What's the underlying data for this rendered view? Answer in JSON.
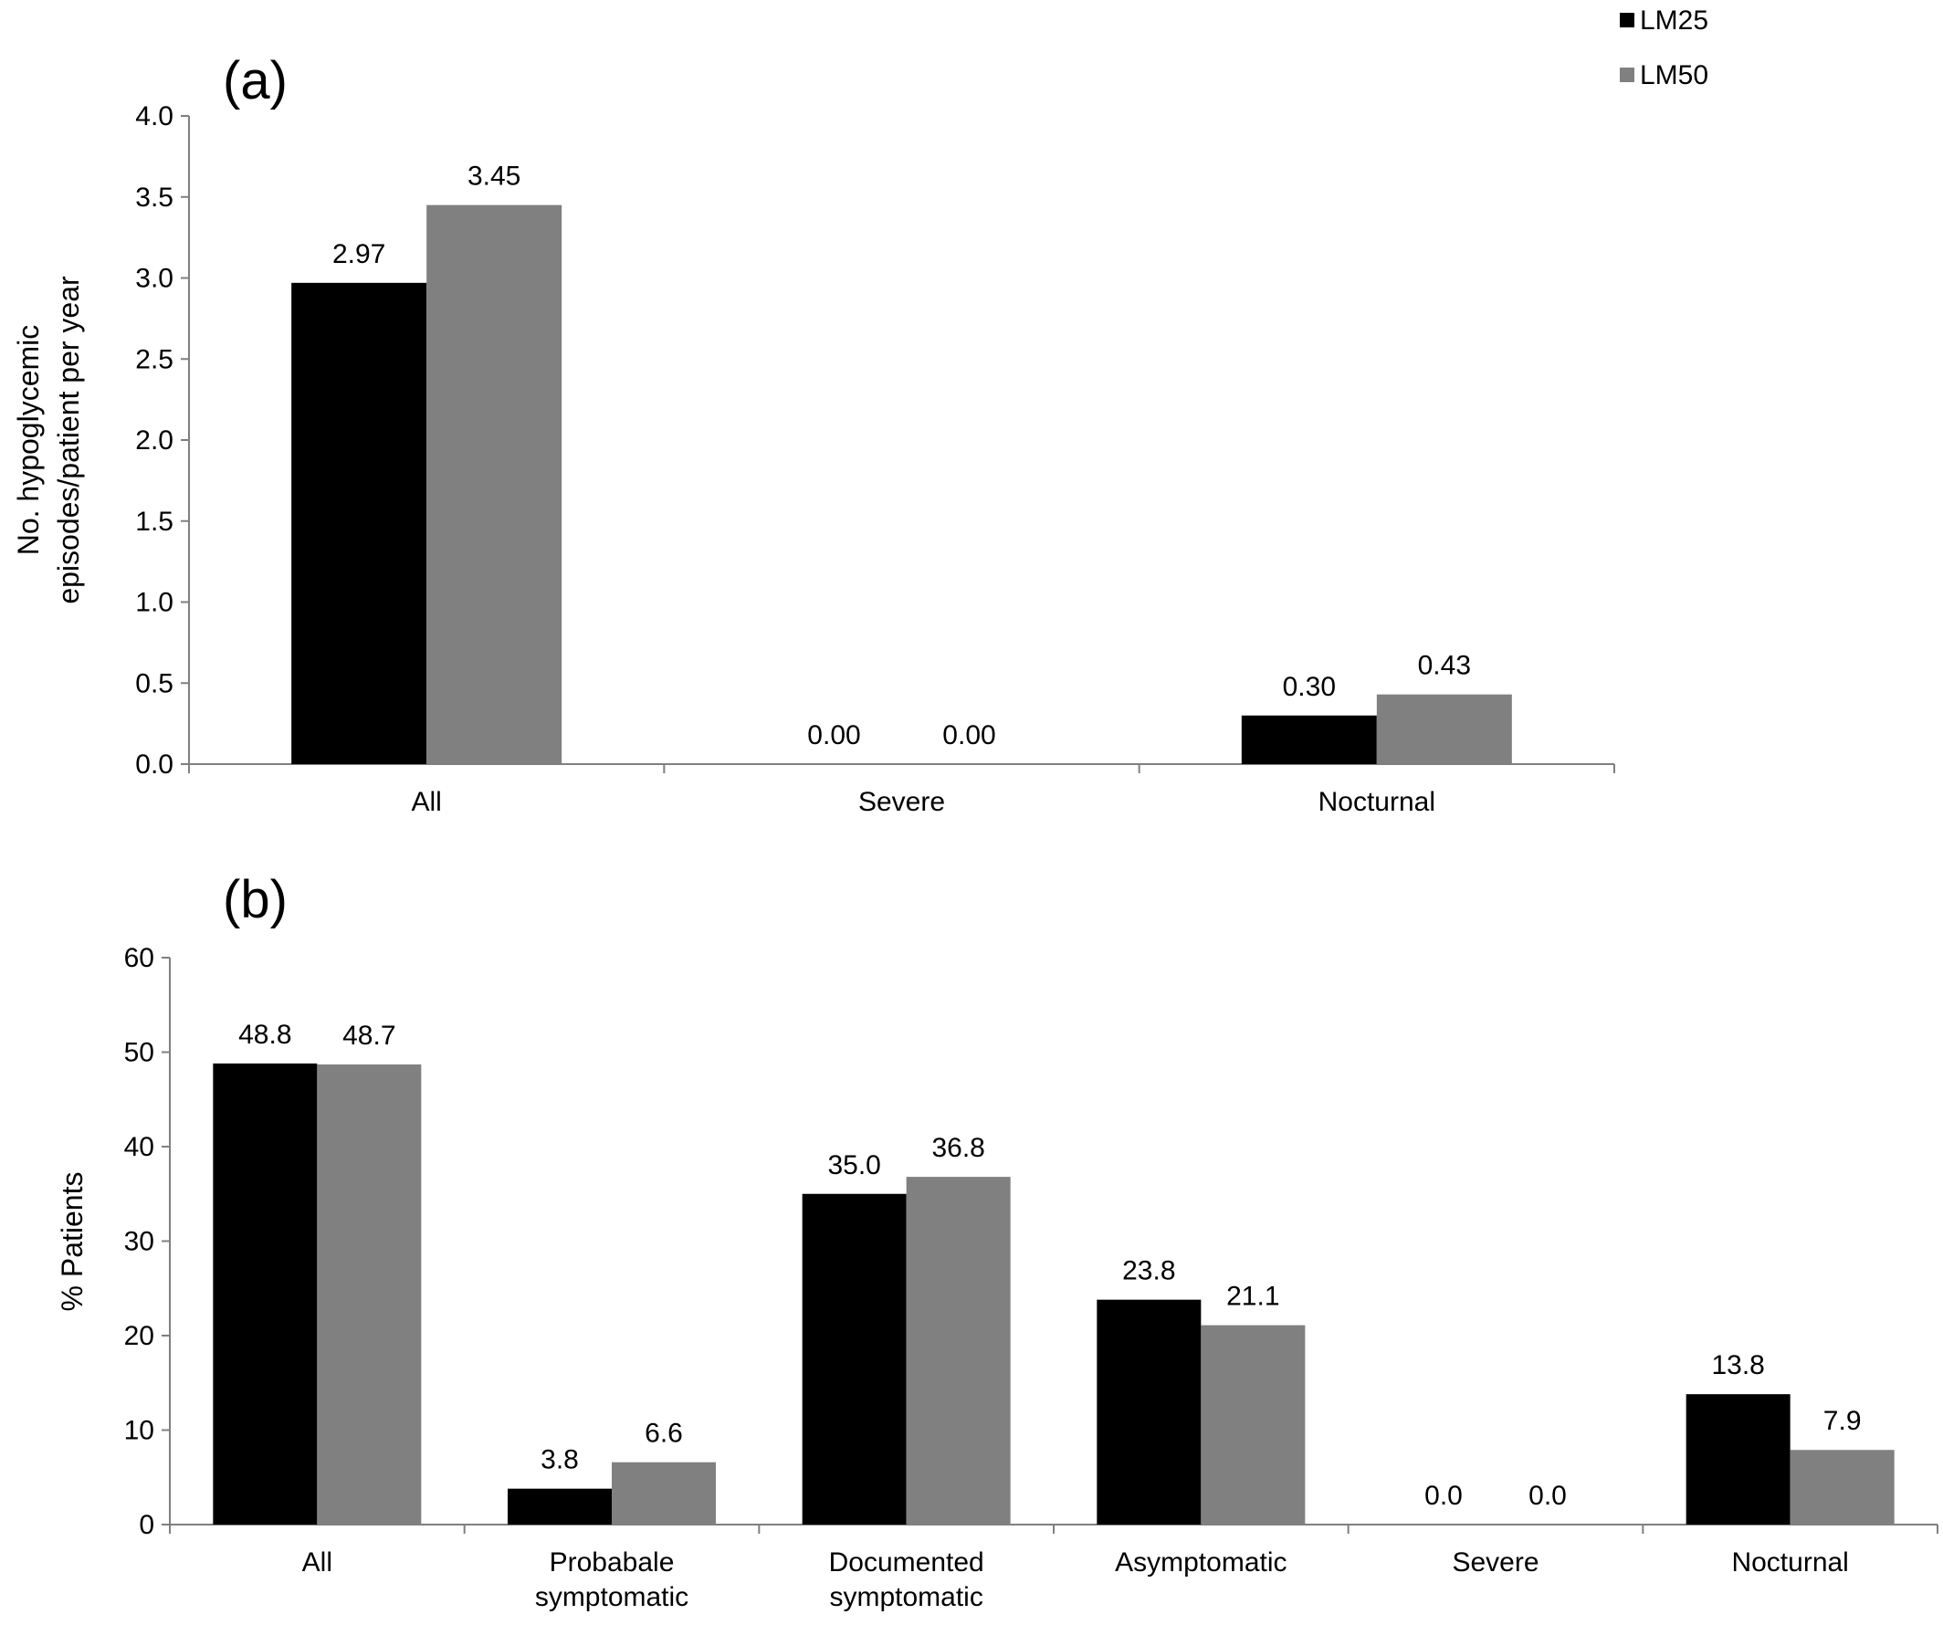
{
  "colors": {
    "LM25": "#000000",
    "LM50": "#808080",
    "axis": "#7f7f7f"
  },
  "legend": {
    "items": [
      {
        "name": "LM25",
        "color": "#000000"
      },
      {
        "name": "LM50",
        "color": "#808080"
      }
    ]
  },
  "chart_data": [
    {
      "type": "bar",
      "panel_tag": "(a)",
      "ylabel_line1": "No. hypoglycemic",
      "ylabel_line2": "episodes/patient per year",
      "xlabel": "",
      "ylim": [
        0,
        4.0
      ],
      "yticks": [
        "0.0",
        "0.5",
        "1.0",
        "1.5",
        "2.0",
        "2.5",
        "3.0",
        "3.5",
        "4.0"
      ],
      "categories": [
        [
          "All"
        ],
        [
          "Severe"
        ],
        [
          "Nocturnal"
        ]
      ],
      "series": [
        {
          "name": "LM25",
          "values": [
            2.97,
            0.0,
            0.3
          ],
          "labels": [
            "2.97",
            "0.00",
            "0.30"
          ]
        },
        {
          "name": "LM50",
          "values": [
            3.45,
            0.0,
            0.43
          ],
          "labels": [
            "3.45",
            "0.00",
            "0.43"
          ]
        }
      ],
      "legend": "top-right",
      "grid": false
    },
    {
      "type": "bar",
      "panel_tag": "(b)",
      "ylabel_line1": "% Patients",
      "ylabel_line2": "",
      "xlabel": "",
      "ylim": [
        0,
        60
      ],
      "yticks": [
        "0",
        "10",
        "20",
        "30",
        "40",
        "50",
        "60"
      ],
      "categories": [
        [
          "All"
        ],
        [
          "Probabale",
          "symptomatic"
        ],
        [
          "Documented",
          "symptomatic"
        ],
        [
          "Asymptomatic"
        ],
        [
          "Severe"
        ],
        [
          "Nocturnal"
        ]
      ],
      "series": [
        {
          "name": "LM25",
          "values": [
            48.8,
            3.8,
            35.0,
            23.8,
            0.0,
            13.8
          ],
          "labels": [
            "48.8",
            "3.8",
            "35.0",
            "23.8",
            "0.0",
            "13.8"
          ]
        },
        {
          "name": "LM50",
          "values": [
            48.7,
            6.6,
            36.8,
            21.1,
            0.0,
            7.9
          ],
          "labels": [
            "48.7",
            "6.6",
            "36.8",
            "21.1",
            "0.0",
            "7.9"
          ]
        }
      ],
      "grid": false
    }
  ]
}
